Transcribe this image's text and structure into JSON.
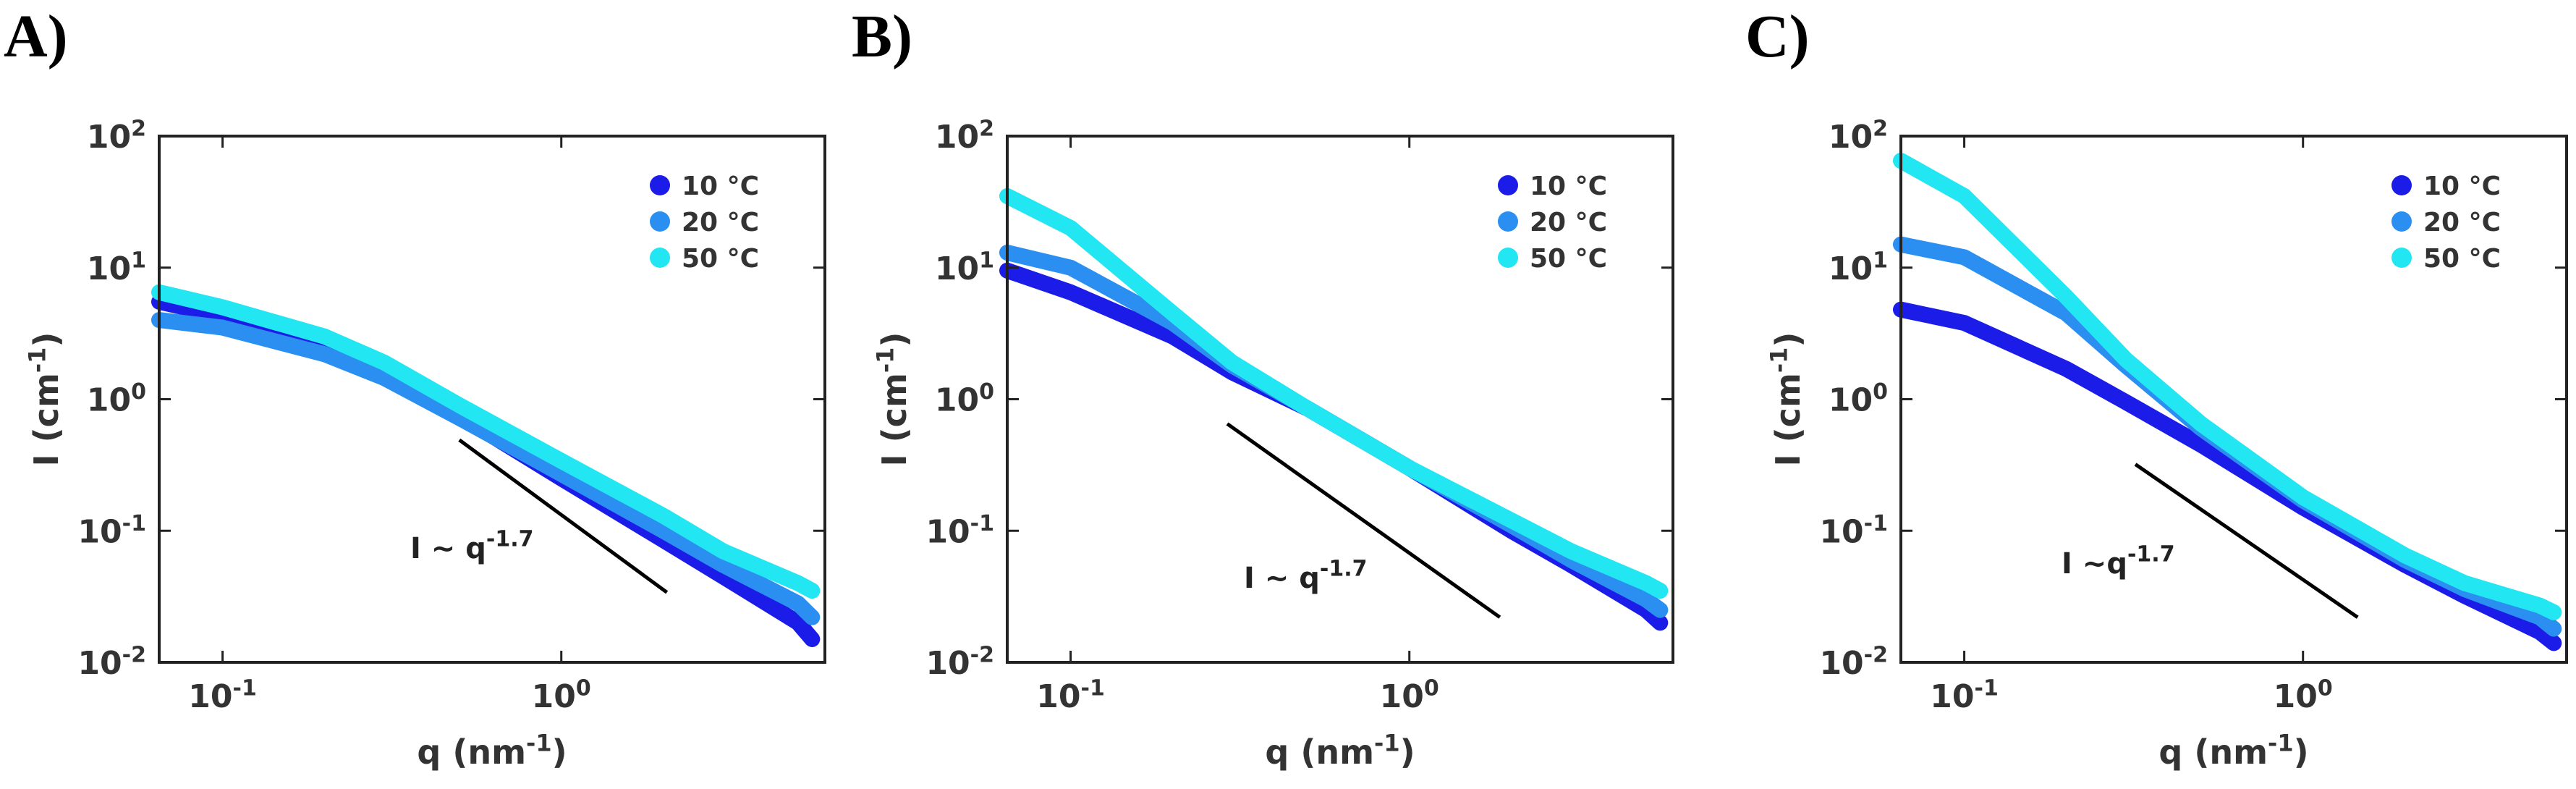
{
  "chart_data": [
    {
      "type": "scatter",
      "panel_label": "A)",
      "x": [
        0.065,
        0.1,
        0.2,
        0.3,
        0.5,
        1,
        2,
        3,
        5,
        5.5
      ],
      "series": [
        {
          "name": "10 °C",
          "color": "#1c1ce8",
          "values": [
            5.5,
            4.3,
            2.6,
            1.6,
            0.75,
            0.25,
            0.085,
            0.045,
            0.02,
            0.015
          ]
        },
        {
          "name": "20 °C",
          "color": "#2a8ff0",
          "values": [
            4.0,
            3.5,
            2.2,
            1.45,
            0.72,
            0.27,
            0.1,
            0.055,
            0.028,
            0.022
          ]
        },
        {
          "name": "50 °C",
          "color": "#22e6f2",
          "values": [
            6.5,
            5.0,
            3.0,
            1.9,
            0.9,
            0.34,
            0.13,
            0.07,
            0.04,
            0.035
          ]
        }
      ],
      "xlim": [
        0.065,
        6
      ],
      "ylim": [
        0.01,
        100
      ],
      "xscale": "log",
      "yscale": "log",
      "xticks": [
        {
          "value": 0.1,
          "label": "10",
          "exponent": "-1"
        },
        {
          "value": 1,
          "label": "10",
          "exponent": "0"
        }
      ],
      "yticks": [
        {
          "value": 0.01,
          "label": "10",
          "exponent": "-2"
        },
        {
          "value": 0.1,
          "label": "10",
          "exponent": "-1"
        },
        {
          "value": 1,
          "label": "10",
          "exponent": "0"
        },
        {
          "value": 10,
          "label": "10",
          "exponent": "1"
        },
        {
          "value": 100,
          "label": "10",
          "exponent": "2"
        }
      ],
      "xlabel": {
        "text": "q (nm",
        "exponent": "-1",
        "suffix": ")"
      },
      "ylabel": {
        "text": "I (cm",
        "exponent": "-1",
        "suffix": ")"
      },
      "annotation": {
        "text": "I ~ q",
        "exponent": "-1.7"
      },
      "guide_line": {
        "x": [
          0.5,
          2.05
        ],
        "y": [
          0.49,
          0.034
        ]
      },
      "legend": "upper right"
    },
    {
      "type": "scatter",
      "panel_label": "B)",
      "x": [
        0.065,
        0.1,
        0.2,
        0.3,
        0.5,
        1,
        2,
        3,
        5,
        5.5
      ],
      "series": [
        {
          "name": "10 °C",
          "color": "#1c1ce8",
          "values": [
            9.5,
            6.5,
            3.0,
            1.6,
            0.85,
            0.3,
            0.1,
            0.055,
            0.025,
            0.02
          ]
        },
        {
          "name": "20 °C",
          "color": "#2a8ff0",
          "values": [
            13,
            10,
            3.8,
            1.8,
            0.85,
            0.3,
            0.11,
            0.06,
            0.03,
            0.025
          ]
        },
        {
          "name": "50 °C",
          "color": "#22e6f2",
          "values": [
            35,
            20,
            4.5,
            1.9,
            0.85,
            0.3,
            0.12,
            0.07,
            0.04,
            0.035
          ]
        }
      ],
      "xlim": [
        0.065,
        6
      ],
      "ylim": [
        0.01,
        100
      ],
      "xscale": "log",
      "yscale": "log",
      "xticks": [
        {
          "value": 0.1,
          "label": "10",
          "exponent": "-1"
        },
        {
          "value": 1,
          "label": "10",
          "exponent": "0"
        }
      ],
      "yticks": [
        {
          "value": 0.01,
          "label": "10",
          "exponent": "-2"
        },
        {
          "value": 0.1,
          "label": "10",
          "exponent": "-1"
        },
        {
          "value": 1,
          "label": "10",
          "exponent": "0"
        },
        {
          "value": 10,
          "label": "10",
          "exponent": "1"
        },
        {
          "value": 100,
          "label": "10",
          "exponent": "2"
        }
      ],
      "xlabel": {
        "text": "q (nm",
        "exponent": "-1",
        "suffix": ")"
      },
      "ylabel": {
        "text": "I (cm",
        "exponent": "-1",
        "suffix": ")"
      },
      "annotation": {
        "text": "I ~ q",
        "exponent": "-1.7"
      },
      "guide_line": {
        "x": [
          0.29,
          1.85
        ],
        "y": [
          0.65,
          0.022
        ]
      },
      "legend": "upper right"
    },
    {
      "type": "scatter",
      "panel_label": "C)",
      "x": [
        0.065,
        0.1,
        0.2,
        0.3,
        0.5,
        1,
        2,
        3,
        5,
        5.5
      ],
      "series": [
        {
          "name": "10 °C",
          "color": "#1c1ce8",
          "values": [
            4.8,
            3.8,
            1.7,
            0.95,
            0.45,
            0.15,
            0.055,
            0.032,
            0.017,
            0.014
          ]
        },
        {
          "name": "20 °C",
          "color": "#2a8ff0",
          "values": [
            15,
            12,
            4.5,
            1.8,
            0.6,
            0.17,
            0.06,
            0.036,
            0.022,
            0.018
          ]
        },
        {
          "name": "50 °C",
          "color": "#22e6f2",
          "values": [
            65,
            35,
            6,
            2.0,
            0.65,
            0.18,
            0.065,
            0.04,
            0.027,
            0.024
          ]
        }
      ],
      "xlim": [
        0.065,
        6
      ],
      "ylim": [
        0.01,
        100
      ],
      "xscale": "log",
      "yscale": "log",
      "xticks": [
        {
          "value": 0.1,
          "label": "10",
          "exponent": "-1"
        },
        {
          "value": 1,
          "label": "10",
          "exponent": "0"
        }
      ],
      "yticks": [
        {
          "value": 0.01,
          "label": "10",
          "exponent": "-2"
        },
        {
          "value": 0.1,
          "label": "10",
          "exponent": "-1"
        },
        {
          "value": 1,
          "label": "10",
          "exponent": "0"
        },
        {
          "value": 10,
          "label": "10",
          "exponent": "1"
        },
        {
          "value": 100,
          "label": "10",
          "exponent": "2"
        }
      ],
      "xlabel": {
        "text": "q (nm",
        "exponent": "-1",
        "suffix": ")"
      },
      "ylabel": {
        "text": "I (cm",
        "exponent": "-1",
        "suffix": ")"
      },
      "annotation": {
        "text": "I ~q",
        "exponent": "-1.7"
      },
      "guide_line": {
        "x": [
          0.32,
          1.45
        ],
        "y": [
          0.32,
          0.022
        ]
      },
      "legend": "upper right"
    }
  ]
}
